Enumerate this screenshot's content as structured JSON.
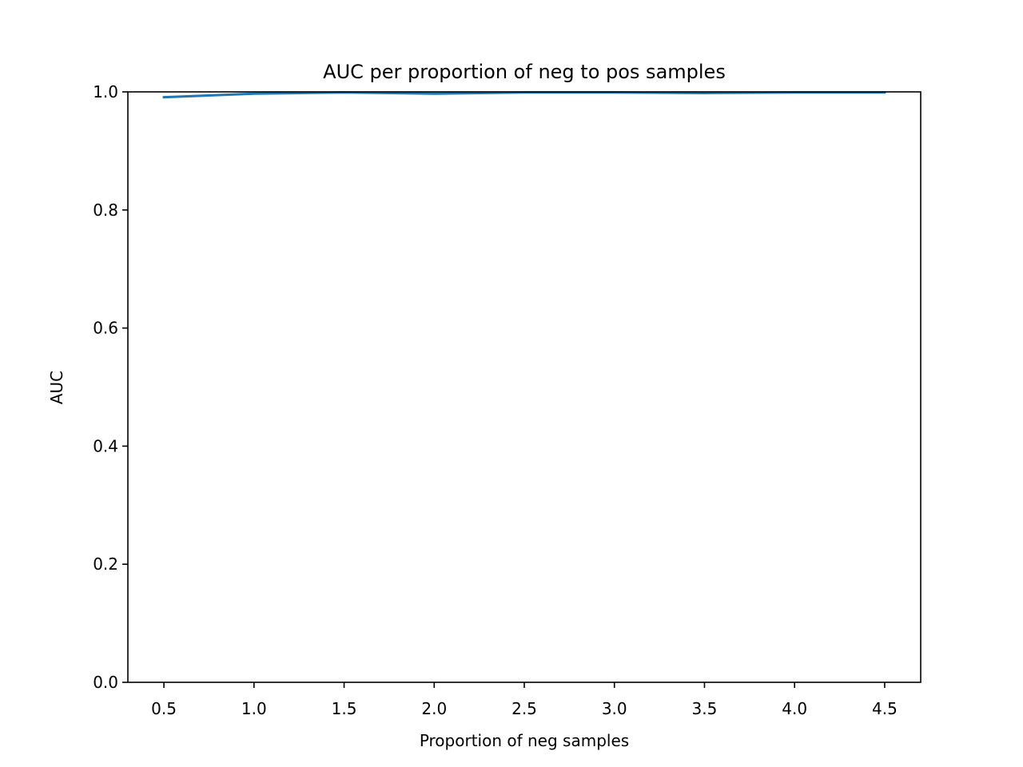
{
  "chart_data": {
    "type": "line",
    "title": "AUC per proportion of neg to pos samples",
    "xlabel": "Proportion of neg samples",
    "ylabel": "AUC",
    "xlim": [
      0.3,
      4.7
    ],
    "ylim": [
      0.0,
      1.0
    ],
    "xticks": [
      0.5,
      1.0,
      1.5,
      2.0,
      2.5,
      3.0,
      3.5,
      4.0,
      4.5
    ],
    "xtick_labels": [
      "0.5",
      "1.0",
      "1.5",
      "2.0",
      "2.5",
      "3.0",
      "3.5",
      "4.0",
      "4.5"
    ],
    "yticks": [
      0.0,
      0.2,
      0.4,
      0.6,
      0.8,
      1.0
    ],
    "ytick_labels": [
      "0.0",
      "0.2",
      "0.4",
      "0.6",
      "0.8",
      "1.0"
    ],
    "grid": false,
    "legend": "none",
    "series": [
      {
        "color": "#1f77b4",
        "x": [
          0.5,
          1.0,
          1.5,
          2.0,
          2.5,
          3.0,
          3.5,
          4.0,
          4.5
        ],
        "y": [
          0.991,
          0.997,
          0.999,
          0.997,
          0.999,
          0.999,
          0.998,
          0.999,
          0.999
        ]
      }
    ]
  }
}
